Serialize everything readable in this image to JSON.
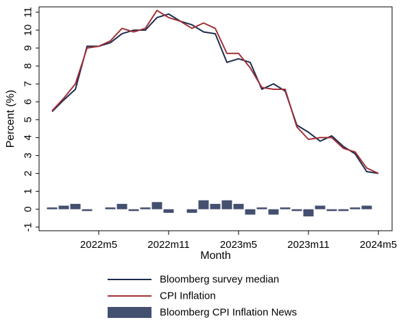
{
  "chart_data": {
    "type": "line",
    "xlabel": "Month",
    "ylabel": "Percent (%)",
    "ylim": [
      -1.2,
      11.3
    ],
    "yticks": [
      -1,
      0,
      1,
      2,
      3,
      4,
      5,
      6,
      7,
      8,
      9,
      10,
      11
    ],
    "xticks": [
      {
        "index": 4,
        "label": "2022m5"
      },
      {
        "index": 10,
        "label": "2022m11"
      },
      {
        "index": 16,
        "label": "2023m5"
      },
      {
        "index": 22,
        "label": "2023m11"
      },
      {
        "index": 28,
        "label": "2024m5"
      }
    ],
    "x": [
      "2022m1",
      "2022m2",
      "2022m3",
      "2022m4",
      "2022m5",
      "2022m6",
      "2022m7",
      "2022m8",
      "2022m9",
      "2022m10",
      "2022m11",
      "2022m12",
      "2023m1",
      "2023m2",
      "2023m3",
      "2023m4",
      "2023m5",
      "2023m6",
      "2023m7",
      "2023m8",
      "2023m9",
      "2023m10",
      "2023m11",
      "2023m12",
      "2024m1",
      "2024m2",
      "2024m3",
      "2024m4",
      "2024m5"
    ],
    "series": [
      {
        "name": "Bloomberg survey median",
        "kind": "line",
        "color": "#1b2a4e",
        "values": [
          5.45,
          6.1,
          6.7,
          9.1,
          9.1,
          9.3,
          9.8,
          10.0,
          10.0,
          10.7,
          10.9,
          10.5,
          10.3,
          9.9,
          9.8,
          8.2,
          8.4,
          8.2,
          6.7,
          7.0,
          6.6,
          4.7,
          4.3,
          3.8,
          4.1,
          3.5,
          3.1,
          2.1,
          2.0
        ]
      },
      {
        "name": "CPI Inflation",
        "kind": "line",
        "color": "#a03036",
        "values": [
          5.5,
          6.2,
          7.0,
          9.0,
          9.1,
          9.4,
          10.1,
          9.9,
          10.1,
          11.1,
          10.7,
          10.5,
          10.1,
          10.4,
          10.1,
          8.7,
          8.7,
          7.9,
          6.8,
          6.7,
          6.7,
          4.6,
          3.9,
          4.0,
          4.0,
          3.4,
          3.2,
          2.3,
          2.0
        ]
      },
      {
        "name": "Bloomberg CPI Inflation News",
        "kind": "bar",
        "color": "#44506f",
        "values": [
          0.1,
          0.2,
          0.3,
          -0.1,
          0.0,
          0.1,
          0.3,
          -0.1,
          0.1,
          0.4,
          -0.2,
          0.0,
          -0.2,
          0.5,
          0.3,
          0.5,
          0.3,
          -0.3,
          0.1,
          -0.3,
          0.1,
          -0.1,
          -0.4,
          0.2,
          -0.1,
          -0.1,
          0.1,
          0.2,
          0.0
        ]
      }
    ],
    "legend_position": "bottom",
    "grid": false
  }
}
